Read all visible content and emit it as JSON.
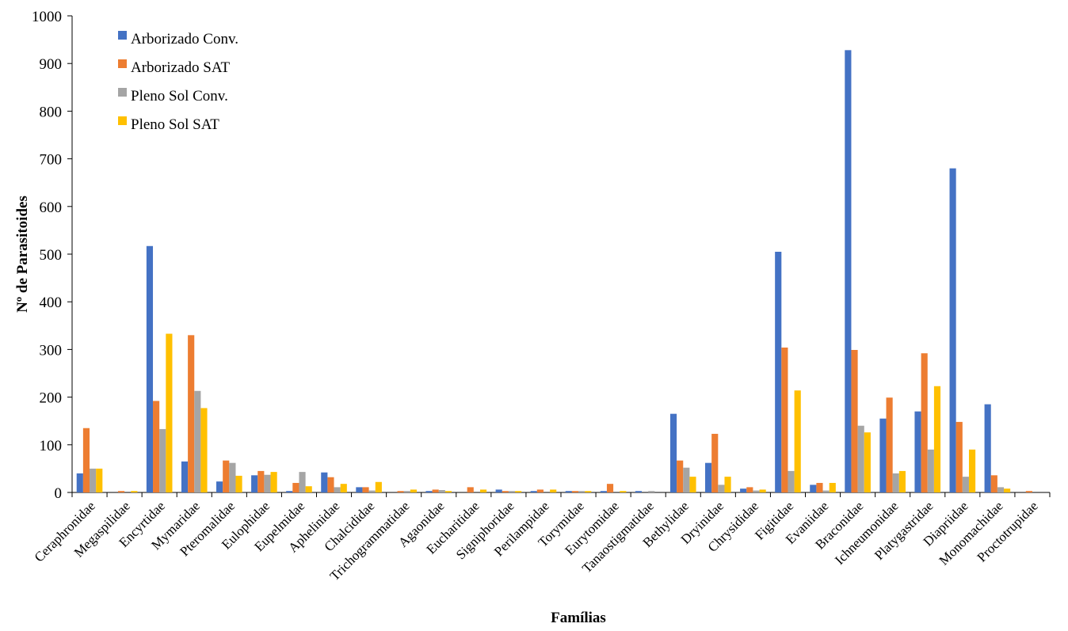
{
  "chart_data": {
    "type": "bar",
    "title": "",
    "xlabel": "Famílias",
    "ylabel": "Nº de Parasitoides",
    "ylim": [
      0,
      1000
    ],
    "yticks": [
      0,
      100,
      200,
      300,
      400,
      500,
      600,
      700,
      800,
      900,
      1000
    ],
    "grid": false,
    "legend": "top-left",
    "categories": [
      "Ceraphronidae",
      "Megaspilidae",
      "Encyrtidae",
      "Mymaridae",
      "Pteromalidae",
      "Eulophidae",
      "Eupelmidae",
      "Aphelinidae",
      "Chalcididae",
      "Trichogrammatidae",
      "Agaonidae",
      "Eucharitidae",
      "Signiphoridae",
      "Perilampidae",
      "Torymidae",
      "Eurytomidae",
      "Tanaostigmatidae",
      "Bethylidae",
      "Dryinidae",
      "Chrysididae",
      "Figitidae",
      "Evaniidae",
      "Braconidae",
      "Ichneumonidae",
      "Platygastridae",
      "Diapriidae",
      "Monomachidae",
      "Proctotrupidae"
    ],
    "series": [
      {
        "name": "Arborizado Conv.",
        "color": "#4472C4",
        "values": [
          40,
          0,
          517,
          65,
          23,
          36,
          3,
          42,
          11,
          0,
          3,
          0,
          6,
          3,
          3,
          3,
          3,
          165,
          62,
          8,
          505,
          16,
          928,
          155,
          170,
          680,
          185,
          0
        ]
      },
      {
        "name": "Arborizado SAT",
        "color": "#ED7D31",
        "values": [
          135,
          3,
          192,
          330,
          67,
          45,
          20,
          32,
          11,
          3,
          6,
          11,
          3,
          6,
          3,
          18,
          0,
          67,
          123,
          11,
          304,
          20,
          299,
          199,
          292,
          148,
          36,
          3
        ]
      },
      {
        "name": "Pleno Sol Conv.",
        "color": "#A5A5A5",
        "values": [
          50,
          0,
          133,
          213,
          62,
          37,
          43,
          11,
          4,
          3,
          5,
          0,
          3,
          0,
          3,
          0,
          3,
          52,
          16,
          4,
          45,
          4,
          140,
          40,
          90,
          33,
          11,
          0
        ]
      },
      {
        "name": "Pleno Sol SAT",
        "color": "#FFC000",
        "values": [
          50,
          3,
          333,
          177,
          35,
          43,
          13,
          18,
          22,
          6,
          3,
          6,
          3,
          6,
          3,
          3,
          0,
          33,
          33,
          6,
          214,
          20,
          126,
          45,
          223,
          90,
          8,
          0
        ]
      }
    ]
  }
}
